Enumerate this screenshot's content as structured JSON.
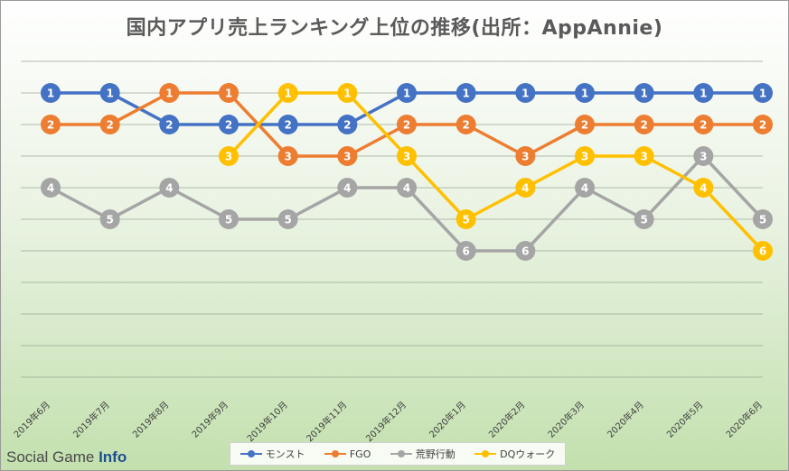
{
  "brand": {
    "text": "Social Game",
    "strong": "Info"
  },
  "chart_data": {
    "type": "line",
    "title": "国内アプリ売上ランキング上位の推移(出所：AppAnnie)",
    "categories": [
      "2019年6月",
      "2019年7月",
      "2019年8月",
      "2019年9月",
      "2019年10月",
      "2019年11月",
      "2019年12月",
      "2020年1月",
      "2020年2月",
      "2020年3月",
      "2020年4月",
      "2020年5月",
      "2020年6月"
    ],
    "ylim": [
      1,
      10
    ],
    "y_reversed": true,
    "grid": true,
    "legend_position": "bottom",
    "series": [
      {
        "name": "モンスト",
        "color": "#4472c4",
        "values": [
          1,
          1,
          2,
          2,
          2,
          2,
          1,
          1,
          1,
          1,
          1,
          1,
          1
        ]
      },
      {
        "name": "FGO",
        "color": "#ed7d31",
        "values": [
          2,
          2,
          1,
          1,
          3,
          3,
          2,
          2,
          3,
          2,
          2,
          2,
          2
        ]
      },
      {
        "name": "荒野行動",
        "color": "#a5a5a5",
        "values": [
          4,
          5,
          4,
          5,
          5,
          4,
          4,
          6,
          6,
          4,
          5,
          3,
          5
        ]
      },
      {
        "name": "DQウォーク",
        "color": "#ffc000",
        "values": [
          null,
          null,
          null,
          3,
          1,
          1,
          3,
          5,
          4,
          3,
          3,
          4,
          6
        ]
      }
    ]
  }
}
